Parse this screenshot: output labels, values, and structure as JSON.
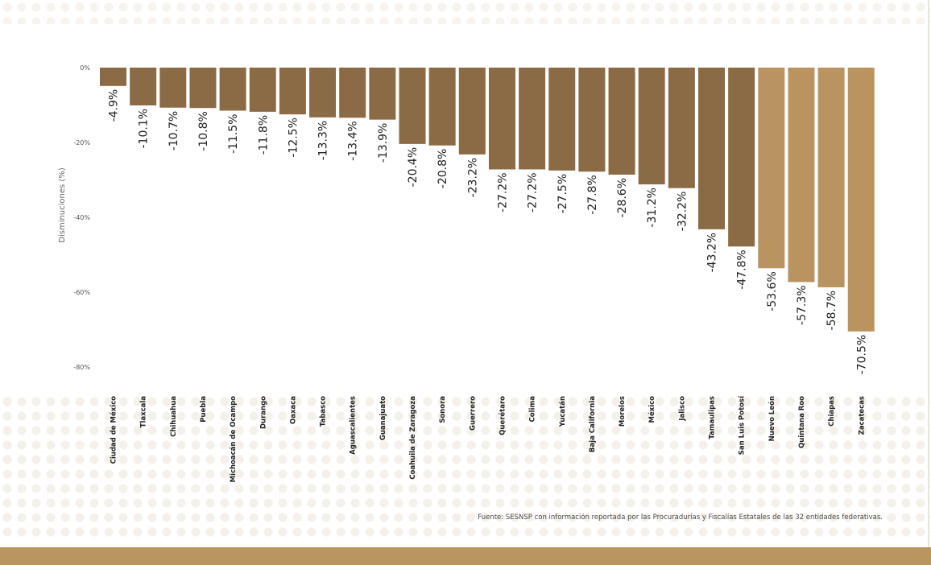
{
  "chart_data": {
    "type": "bar",
    "ylabel": "Disminuciones (%)",
    "ylim": [
      -80,
      0
    ],
    "yticks": [
      0,
      -20,
      -40,
      -60,
      -80
    ],
    "ytick_labels": [
      "0%",
      "-20%",
      "-40%",
      "-60%",
      "-80%"
    ],
    "grid": false,
    "categories": [
      "Ciudad de México",
      "Tlaxcala",
      "Chihuahua",
      "Puebla",
      "Michoacán de Ocampo",
      "Durango",
      "Oaxaca",
      "Tabasco",
      "Aguascalientes",
      "Guanajuato",
      "Coahuila de Zaragoza",
      "Sonora",
      "Guerrero",
      "Querétaro",
      "Colima",
      "Yucatán",
      "Baja California",
      "Morelos",
      "México",
      "Jalisco",
      "Tamaulipas",
      "San Luis Potosí",
      "Nuevo León",
      "Quintana Roo",
      "Chiapas",
      "Zacatecas"
    ],
    "values": [
      -4.9,
      -10.1,
      -10.7,
      -10.8,
      -11.5,
      -11.8,
      -12.5,
      -13.3,
      -13.4,
      -13.9,
      -20.4,
      -20.8,
      -23.2,
      -27.2,
      -27.2,
      -27.5,
      -27.8,
      -28.6,
      -31.2,
      -32.2,
      -43.2,
      -47.8,
      -53.6,
      -57.3,
      -58.7,
      -70.5
    ],
    "value_labels": [
      "-4.9%",
      "-10.1%",
      "-10.7%",
      "-10.8%",
      "-11.5%",
      "-11.8%",
      "-12.5%",
      "-13.3%",
      "-13.4%",
      "-13.9%",
      "-20.4%",
      "-20.8%",
      "-23.2%",
      "-27.2%",
      "-27.2%",
      "-27.5%",
      "-27.8%",
      "-28.6%",
      "-31.2%",
      "-32.2%",
      "-43.2%",
      "-47.8%",
      "-53.6%",
      "-57.3%",
      "-58.7%",
      "-70.5%"
    ],
    "bar_colors": {
      "dark": "#8a6b45",
      "light": "#b99460"
    },
    "light_from_index": 22
  },
  "footer": {
    "source": "Fuente: SESNSP con información reportada por las Procuradurías y Fiscalías Estatales de las 32 entidades federativas.",
    "band_color": "#b9955f"
  }
}
